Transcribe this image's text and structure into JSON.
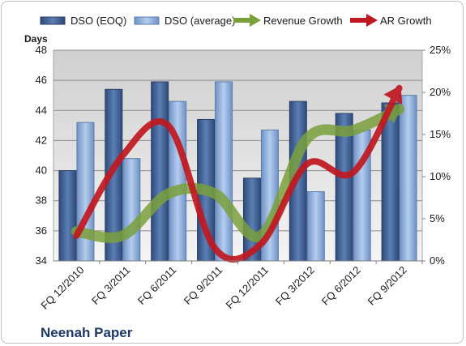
{
  "company_name": "Neenah Paper",
  "chart_data": {
    "type": "bar",
    "categories": [
      "FQ 12/2010",
      "FQ 3/2011",
      "FQ 6/2011",
      "FQ 9/2011",
      "FQ 12/2011",
      "FQ 3/2012",
      "FQ 6/2012",
      "FQ 9/2012"
    ],
    "ylabel": "Days",
    "ylim": [
      34,
      48
    ],
    "yticks": [
      "34",
      "36",
      "38",
      "40",
      "42",
      "44",
      "46",
      "48"
    ],
    "y2lim": [
      0,
      25
    ],
    "y2ticks": [
      "0%",
      "5%",
      "10%",
      "15%",
      "20%",
      "25%"
    ],
    "grid": true,
    "legend_position": "top",
    "series": [
      {
        "name": "DSO (EOQ)",
        "kind": "bar",
        "axis": "left",
        "color": "#4a6a9c",
        "values": [
          40.0,
          45.4,
          45.9,
          43.4,
          39.5,
          44.6,
          43.8,
          44.5
        ]
      },
      {
        "name": "DSO (average)",
        "kind": "bar",
        "axis": "left",
        "color": "#8eaedc",
        "values": [
          43.2,
          40.8,
          44.6,
          45.9,
          42.7,
          38.6,
          42.7,
          45.0
        ]
      },
      {
        "name": "Revenue Growth",
        "kind": "line",
        "axis": "right",
        "color": "#7aa03c",
        "values": [
          3.5,
          3.0,
          8.0,
          8.0,
          3.0,
          14.5,
          15.5,
          18.0
        ]
      },
      {
        "name": "AR Growth",
        "kind": "line",
        "axis": "right",
        "color": "#c01820",
        "values": [
          3.0,
          12.5,
          16.0,
          1.5,
          2.0,
          11.5,
          10.5,
          20.5
        ]
      }
    ]
  }
}
